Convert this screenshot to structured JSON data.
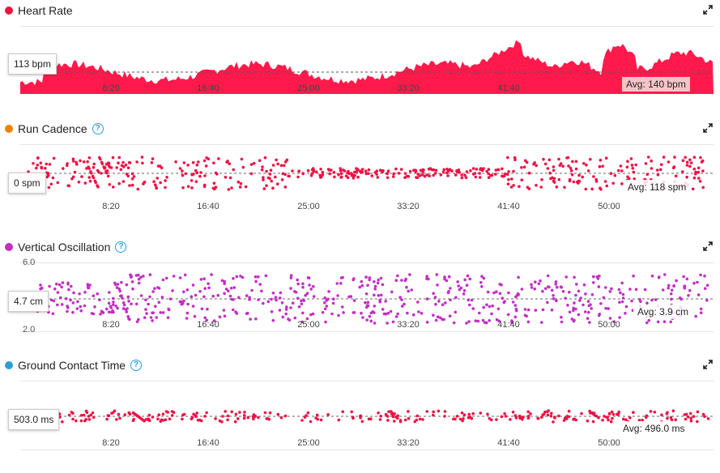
{
  "colors": {
    "heart_rate": "#ff1a4b",
    "run_cadence_dot": "#ff8a00",
    "vertical_oscillation": "#c22fc4",
    "ground_contact_dot": "#29a0d8",
    "point_red": "#ee1144",
    "avg_line": "#777777",
    "help": "#29a0d8"
  },
  "x_ticks": [
    "8:20",
    "16:40",
    "25:00",
    "33:20",
    "41:40",
    "50:00"
  ],
  "panels": {
    "heart_rate": {
      "title": "Heart Rate",
      "icon": "expand-icon",
      "current": "113 bpm",
      "average": "Avg: 140 bpm"
    },
    "run_cadence": {
      "title": "Run Cadence",
      "help": "?",
      "icon": "expand-icon",
      "current": "0 spm",
      "average": "Avg: 118 spm"
    },
    "vertical_oscillation": {
      "title": "Vertical Oscillation",
      "help": "?",
      "icon": "expand-icon",
      "current": "4.7 cm",
      "average": "Avg: 3.9 cm",
      "y_max": "6.0",
      "y_min": "2.0"
    },
    "ground_contact_time": {
      "title": "Ground Contact Time",
      "help": "?",
      "icon": "expand-icon",
      "current": "503.0 ms",
      "average": "Avg: 496.0 ms"
    }
  }
}
